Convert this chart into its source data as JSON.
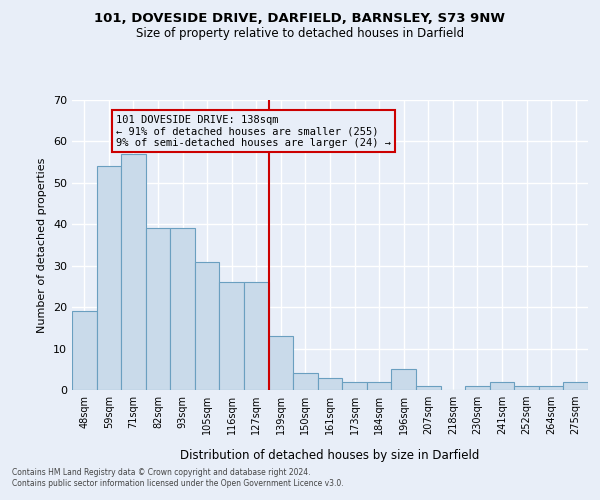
{
  "title1": "101, DOVESIDE DRIVE, DARFIELD, BARNSLEY, S73 9NW",
  "title2": "Size of property relative to detached houses in Darfield",
  "xlabel": "Distribution of detached houses by size in Darfield",
  "ylabel": "Number of detached properties",
  "categories": [
    "48sqm",
    "59sqm",
    "71sqm",
    "82sqm",
    "93sqm",
    "105sqm",
    "116sqm",
    "127sqm",
    "139sqm",
    "150sqm",
    "161sqm",
    "173sqm",
    "184sqm",
    "196sqm",
    "207sqm",
    "218sqm",
    "230sqm",
    "241sqm",
    "252sqm",
    "264sqm",
    "275sqm"
  ],
  "values": [
    19,
    54,
    57,
    39,
    39,
    31,
    26,
    26,
    13,
    4,
    3,
    2,
    2,
    5,
    1,
    0,
    1,
    2,
    1,
    1,
    2
  ],
  "bar_color": "#c9daea",
  "bar_edge_color": "#6a9fc0",
  "vline_color": "#cc0000",
  "annotation_text": "101 DOVESIDE DRIVE: 138sqm\n← 91% of detached houses are smaller (255)\n9% of semi-detached houses are larger (24) →",
  "annotation_box_edge": "#cc0000",
  "ylim": [
    0,
    70
  ],
  "yticks": [
    0,
    10,
    20,
    30,
    40,
    50,
    60,
    70
  ],
  "background_color": "#e8eef8",
  "grid_color": "#ffffff",
  "footer": "Contains HM Land Registry data © Crown copyright and database right 2024.\nContains public sector information licensed under the Open Government Licence v3.0."
}
